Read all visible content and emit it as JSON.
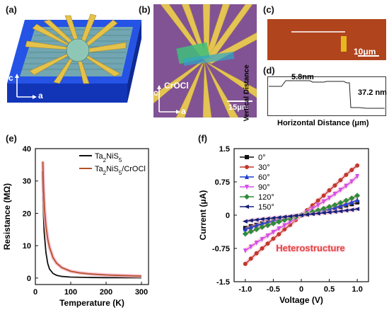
{
  "panels": {
    "a": {
      "label": "(a)",
      "axis_c": "c",
      "axis_a": "a"
    },
    "b": {
      "label": "(b)",
      "material_label": "CrOCl",
      "scale_bar": "15μm",
      "axis_c": "c",
      "axis_a": "a"
    },
    "c": {
      "label": "(c)",
      "scale_bar": "10μm"
    },
    "d": {
      "label": "(d)",
      "ylabel": "Vertical Distance",
      "xlabel": "Horizontal Distance (μm)",
      "annotations": [
        "5.8nm",
        "37.2 nm"
      ]
    },
    "e": {
      "label": "(e)"
    },
    "f": {
      "label": "(f)",
      "annotation": "Heterostructure"
    }
  },
  "colors": {
    "black_curve": "#111111",
    "brown_curve": "#b5502a",
    "pink_glow": "#f6b6c8",
    "heterostructure_text": "#e0413c",
    "substrate_blue": "#1e4fe0",
    "gold": "#e5c24a"
  },
  "chart_data": [
    {
      "panel": "e",
      "type": "line",
      "xlabel": "Temperature (K)",
      "ylabel": "Resistance (MΩ)",
      "xlim": [
        0,
        320
      ],
      "ylim": [
        -2,
        40
      ],
      "xticks": [
        0,
        100,
        200,
        300
      ],
      "yticks": [
        0,
        10,
        20,
        30,
        40
      ],
      "legend_placement": "top-right",
      "series": [
        {
          "name": "Ta2NiS5",
          "legend_parts": [
            "Ta",
            "2",
            "NiS",
            "5",
            ""
          ],
          "color": "#111111",
          "x": [
            19,
            22,
            25,
            30,
            35,
            40,
            50,
            60,
            75,
            100,
            150,
            200,
            250,
            300
          ],
          "y": [
            33,
            22,
            14,
            7.8,
            4.5,
            2.8,
            1.4,
            0.85,
            0.5,
            0.3,
            0.18,
            0.12,
            0.1,
            0.08
          ]
        },
        {
          "name": "Ta2NiS5/CrOCl",
          "legend_parts": [
            "Ta",
            "2",
            "NiS",
            "5",
            "/CrOCl"
          ],
          "color": "#b5502a",
          "x": [
            21,
            23,
            26,
            30,
            35,
            40,
            50,
            60,
            75,
            100,
            125,
            150,
            200,
            250,
            300
          ],
          "y": [
            36,
            28,
            21,
            16,
            12,
            9.5,
            6.3,
            4.6,
            3.2,
            2.1,
            1.6,
            1.3,
            0.95,
            0.75,
            0.6
          ]
        }
      ]
    },
    {
      "panel": "f",
      "type": "line",
      "xlabel": "Voltage (V)",
      "ylabel": "Current (μA)",
      "xlim": [
        -1.2,
        1.2
      ],
      "ylim": [
        -1.5,
        1.5
      ],
      "xticks": [
        -1.0,
        -0.5,
        0,
        0.5,
        1.0
      ],
      "xtick_labels": [
        "-1.0",
        "-0.5",
        "0",
        "0.5",
        "1.0"
      ],
      "yticks": [
        -1.5,
        -0.75,
        0,
        0.75,
        1.5
      ],
      "ytick_labels": [
        "-1.5",
        "-0.75",
        "0",
        "0.75",
        "1.5"
      ],
      "legend_placement": "top-left",
      "x": [
        -1.0,
        -0.9,
        -0.8,
        -0.7,
        -0.6,
        -0.5,
        -0.4,
        -0.3,
        -0.2,
        -0.1,
        0,
        0.1,
        0.2,
        0.3,
        0.4,
        0.5,
        0.6,
        0.7,
        0.8,
        0.9,
        1.0
      ],
      "series": [
        {
          "name": "0°",
          "color": "#111111",
          "marker": "square",
          "values": [
            -0.29,
            -0.25,
            -0.22,
            -0.19,
            -0.16,
            -0.13,
            -0.1,
            -0.08,
            -0.05,
            -0.025,
            0,
            0.025,
            0.05,
            0.08,
            0.1,
            0.13,
            0.16,
            0.19,
            0.22,
            0.25,
            0.29
          ]
        },
        {
          "name": "30°",
          "color": "#c0392b",
          "marker": "circle",
          "values": [
            -1.1,
            -0.98,
            -0.86,
            -0.75,
            -0.64,
            -0.53,
            -0.43,
            -0.32,
            -0.22,
            -0.11,
            0,
            0.11,
            0.22,
            0.33,
            0.44,
            0.56,
            0.67,
            0.79,
            0.91,
            1.02,
            1.12
          ]
        },
        {
          "name": "60°",
          "color": "#1f3fcf",
          "marker": "triangle-up",
          "values": [
            -0.32,
            -0.28,
            -0.24,
            -0.2,
            -0.17,
            -0.14,
            -0.11,
            -0.08,
            -0.055,
            -0.027,
            0,
            0.027,
            0.055,
            0.08,
            0.11,
            0.14,
            0.17,
            0.21,
            0.25,
            0.29,
            0.34
          ]
        },
        {
          "name": "90°",
          "color": "#d24fe6",
          "marker": "triangle-down",
          "values": [
            -0.8,
            -0.71,
            -0.62,
            -0.54,
            -0.46,
            -0.38,
            -0.3,
            -0.23,
            -0.15,
            -0.075,
            0,
            0.075,
            0.15,
            0.23,
            0.31,
            0.39,
            0.48,
            0.57,
            0.66,
            0.76,
            0.88
          ]
        },
        {
          "name": "120°",
          "color": "#2e8b3a",
          "marker": "diamond",
          "values": [
            -0.42,
            -0.37,
            -0.32,
            -0.27,
            -0.23,
            -0.19,
            -0.15,
            -0.11,
            -0.075,
            -0.037,
            0,
            0.037,
            0.075,
            0.11,
            0.15,
            0.19,
            0.23,
            0.28,
            0.33,
            0.38,
            0.44
          ]
        },
        {
          "name": "150°",
          "color": "#16207a",
          "marker": "triangle-left",
          "values": [
            -0.14,
            -0.12,
            -0.105,
            -0.09,
            -0.077,
            -0.064,
            -0.051,
            -0.038,
            -0.025,
            -0.012,
            0,
            0.012,
            0.025,
            0.038,
            0.051,
            0.064,
            0.077,
            0.09,
            0.105,
            0.12,
            0.14
          ]
        }
      ]
    }
  ]
}
